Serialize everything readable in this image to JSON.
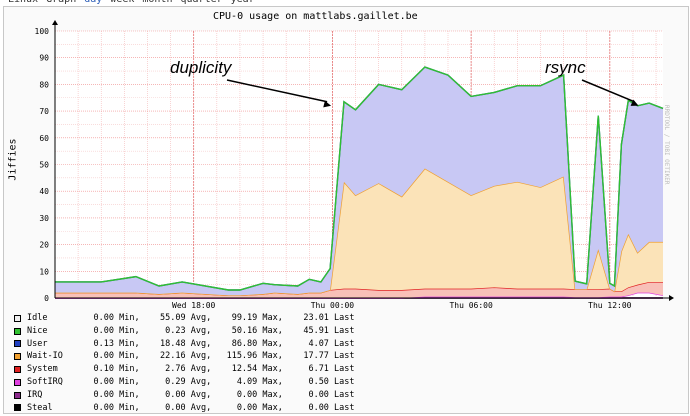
{
  "nav": {
    "items": [
      "Linux",
      "Graph",
      "day",
      "week",
      "month",
      "quarter",
      "year"
    ],
    "active_index": 2
  },
  "chart_data": {
    "type": "area",
    "title": "CPU-0 usage on mattlabs.gaillet.be",
    "ylabel": "Jiffies",
    "credit": "RRDTOOL / TOBI OETIKER",
    "ylim": [
      0,
      100
    ],
    "yticks": [
      0,
      10,
      20,
      30,
      40,
      50,
      60,
      70,
      80,
      90,
      100
    ],
    "x_tick_labels": [
      {
        "label": "Wed 18:00",
        "hour": 18
      },
      {
        "label": "Thu 00:00",
        "hour": 24
      },
      {
        "label": "Thu 06:00",
        "hour": 30
      },
      {
        "label": "Thu 12:00",
        "hour": 36
      }
    ],
    "x_range_hours": [
      12,
      38.3
    ],
    "x_hours": [
      12,
      14,
      15.5,
      16.5,
      17.5,
      19.5,
      20,
      21,
      21.5,
      22.5,
      23,
      23.5,
      23.9,
      24.5,
      25,
      26,
      27,
      28,
      29,
      30,
      31,
      32,
      33,
      34,
      34.5,
      35,
      35.5,
      36,
      36.2,
      36.5,
      36.8,
      37.2,
      37.7,
      38.3
    ],
    "series": [
      {
        "name": "Steal",
        "color": "#000000",
        "values": [
          0,
          0,
          0,
          0,
          0,
          0,
          0,
          0,
          0,
          0,
          0,
          0,
          0,
          0,
          0,
          0,
          0,
          0,
          0,
          0,
          0,
          0,
          0,
          0,
          0,
          0,
          0,
          0,
          0,
          0,
          0,
          0,
          0,
          0
        ]
      },
      {
        "name": "IRQ",
        "color": "#8b2a8b",
        "values": [
          0,
          0,
          0,
          0,
          0,
          0,
          0,
          0,
          0,
          0,
          0,
          0,
          0,
          0,
          0,
          0,
          0,
          0,
          0,
          0,
          0,
          0,
          0,
          0,
          0,
          0,
          0,
          0,
          0,
          0,
          0,
          0,
          0,
          0
        ]
      },
      {
        "name": "SoftIRQ",
        "color": "#e040e0",
        "values": [
          0,
          0,
          0,
          0,
          0,
          0,
          0,
          0,
          0,
          0,
          0,
          0,
          0,
          0,
          0,
          0,
          0,
          0.5,
          0.5,
          0.5,
          0.5,
          0.5,
          0.5,
          0.5,
          0.3,
          0.3,
          0.3,
          0.5,
          0.5,
          0.5,
          1,
          2,
          2,
          1
        ]
      },
      {
        "name": "System",
        "color": "#e02020",
        "values": [
          2,
          2,
          2,
          1.5,
          2,
          1,
          1,
          1.5,
          2,
          1.5,
          2,
          2,
          3,
          3.5,
          3.5,
          3,
          3,
          3,
          3,
          3,
          3.5,
          3,
          3,
          3,
          3,
          3,
          3,
          3,
          2,
          2,
          3,
          3,
          4,
          5
        ]
      },
      {
        "name": "Wait-IO",
        "color": "#f0a030",
        "values": [
          0,
          0,
          0,
          0,
          0,
          0,
          0,
          0,
          0,
          0,
          0,
          0,
          0,
          40,
          35,
          40,
          35,
          45,
          40,
          35,
          38,
          40,
          38,
          42,
          0,
          0,
          15,
          0,
          0,
          15,
          20,
          12,
          15,
          15
        ]
      },
      {
        "name": "User",
        "color": "#2040c0",
        "values": [
          4,
          4,
          6,
          3,
          4,
          2,
          2,
          4,
          3,
          3,
          5,
          4,
          8,
          30,
          32,
          37,
          40,
          38,
          40,
          37,
          35,
          36,
          38,
          38,
          3,
          2,
          50,
          2,
          2,
          40,
          50,
          55,
          52,
          50
        ]
      },
      {
        "name": "Nice",
        "color": "#30c030",
        "values": [
          0,
          0,
          0,
          0,
          0,
          0,
          0,
          0,
          0,
          0,
          0,
          0,
          0,
          0,
          0,
          0,
          0,
          0,
          0,
          0,
          0,
          0,
          0,
          0,
          0,
          0,
          0,
          0,
          0,
          0,
          0,
          0,
          0,
          0
        ]
      }
    ],
    "legend": [
      {
        "name": "Idle",
        "color": "#f0f0f0",
        "min": "0.00",
        "avg": "55.09",
        "max": "99.19",
        "last": "23.01"
      },
      {
        "name": "Nice",
        "color": "#30c030",
        "min": "0.00",
        "avg": "0.23",
        "max": "50.16",
        "last": "45.91"
      },
      {
        "name": "User",
        "color": "#2040c0",
        "min": "0.13",
        "avg": "18.48",
        "max": "86.80",
        "last": "4.07"
      },
      {
        "name": "Wait-IO",
        "color": "#f0a030",
        "min": "0.00",
        "avg": "22.16",
        "max": "115.96",
        "last": "17.77"
      },
      {
        "name": "System",
        "color": "#e02020",
        "min": "0.10",
        "avg": "2.76",
        "max": "12.54",
        "last": "6.71"
      },
      {
        "name": "SoftIRQ",
        "color": "#e040e0",
        "min": "0.00",
        "avg": "0.29",
        "max": "4.09",
        "last": "0.50"
      },
      {
        "name": "IRQ",
        "color": "#8b2a8b",
        "min": "0.00",
        "avg": "0.00",
        "max": "0.00",
        "last": "0.00"
      },
      {
        "name": "Steal",
        "color": "#000000",
        "min": "0.00",
        "avg": "0.00",
        "max": "0.00",
        "last": "0.00"
      }
    ],
    "annotations": [
      {
        "text": "duplicity",
        "hour": 23.9,
        "value": 72
      },
      {
        "text": "rsync",
        "hour": 37.2,
        "value": 72
      }
    ]
  }
}
